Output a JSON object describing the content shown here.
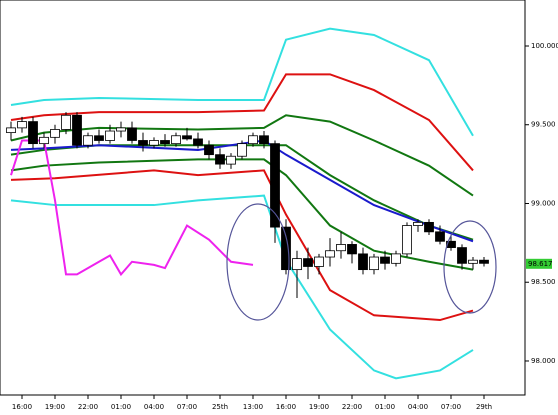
{
  "chart_data": {
    "type": "candlestick",
    "categories": [
      null,
      "16:00",
      null,
      null,
      "19:00",
      null,
      null,
      "22:00",
      null,
      null,
      "01:00",
      null,
      null,
      "04:00",
      null,
      null,
      "07:00",
      null,
      null,
      "25th",
      null,
      null,
      "13:00",
      null,
      null,
      "16:00",
      null,
      null,
      "19:00",
      null,
      null,
      "22:00",
      null,
      null,
      "01:00",
      null,
      null,
      "04:00",
      null,
      null,
      "07:00",
      null,
      null,
      "29th"
    ],
    "open": [
      99.45,
      99.48,
      99.52,
      99.38,
      99.42,
      99.47,
      99.56,
      99.37,
      99.43,
      99.4,
      99.46,
      99.48,
      99.4,
      99.37,
      99.4,
      99.38,
      99.43,
      99.41,
      99.37,
      99.31,
      99.25,
      99.3,
      99.38,
      99.43,
      99.38,
      98.85,
      98.58,
      98.65,
      98.6,
      98.66,
      98.7,
      98.74,
      98.68,
      98.58,
      98.66,
      98.62,
      98.68,
      98.86,
      98.88,
      98.82,
      98.76,
      98.72,
      98.62,
      98.64
    ],
    "high": [
      99.52,
      99.55,
      99.55,
      99.45,
      99.5,
      99.58,
      99.58,
      99.45,
      99.47,
      99.5,
      99.52,
      99.52,
      99.45,
      99.42,
      99.44,
      99.45,
      99.48,
      99.45,
      99.4,
      99.35,
      99.32,
      99.4,
      99.45,
      99.46,
      99.4,
      98.9,
      98.7,
      98.72,
      98.68,
      98.78,
      98.82,
      98.76,
      98.72,
      98.68,
      98.7,
      98.7,
      98.88,
      98.9,
      98.9,
      98.86,
      98.8,
      98.74,
      98.66,
      98.66
    ],
    "low": [
      99.4,
      99.45,
      99.35,
      99.35,
      99.38,
      99.44,
      99.35,
      99.35,
      99.38,
      99.38,
      99.42,
      99.38,
      99.33,
      99.35,
      99.36,
      99.36,
      99.4,
      99.35,
      99.28,
      99.22,
      99.22,
      99.28,
      99.36,
      99.35,
      98.75,
      98.55,
      98.4,
      98.52,
      98.55,
      98.6,
      98.65,
      98.62,
      98.55,
      98.55,
      98.58,
      98.6,
      98.66,
      98.82,
      98.8,
      98.74,
      98.7,
      98.58,
      98.58,
      98.6
    ],
    "close": [
      99.48,
      99.52,
      99.38,
      99.42,
      99.47,
      99.56,
      99.37,
      99.43,
      99.4,
      99.46,
      99.48,
      99.4,
      99.37,
      99.4,
      99.38,
      99.43,
      99.41,
      99.37,
      99.31,
      99.25,
      99.3,
      99.38,
      99.43,
      99.38,
      98.85,
      98.58,
      98.65,
      98.6,
      98.66,
      98.7,
      98.74,
      98.68,
      98.58,
      98.66,
      98.62,
      98.68,
      98.86,
      98.88,
      98.82,
      98.76,
      98.72,
      98.62,
      98.64,
      98.62
    ],
    "lines": [
      {
        "color": "#33e0e0",
        "x": [
          0,
          3,
          8,
          17,
          23,
          25,
          29,
          33,
          38,
          42
        ],
        "values": [
          99.625,
          99.657,
          99.67,
          99.657,
          99.657,
          100.04,
          100.11,
          100.07,
          99.91,
          99.43
        ]
      },
      {
        "color": "#33e0e0",
        "x": [
          0,
          4,
          13,
          17,
          23,
          25,
          29,
          33,
          35,
          39,
          42
        ],
        "values": [
          99.02,
          98.99,
          98.99,
          99.02,
          99.05,
          98.64,
          98.2,
          97.94,
          97.89,
          97.94,
          98.07
        ]
      },
      {
        "color": "#dd1111",
        "x": [
          0,
          3,
          8,
          17,
          23,
          25,
          29,
          33,
          38,
          42
        ],
        "values": [
          99.53,
          99.56,
          99.58,
          99.58,
          99.59,
          99.82,
          99.82,
          99.72,
          99.53,
          99.21
        ]
      },
      {
        "color": "#dd1111",
        "x": [
          0,
          4,
          13,
          17,
          23,
          25,
          29,
          33,
          39,
          42
        ],
        "values": [
          99.15,
          99.16,
          99.21,
          99.18,
          99.21,
          98.93,
          98.45,
          98.29,
          98.26,
          98.32
        ]
      },
      {
        "color": "#117711",
        "x": [
          0,
          3,
          8,
          17,
          23,
          25,
          29,
          33,
          38,
          42
        ],
        "values": [
          99.4,
          99.45,
          99.48,
          99.47,
          99.48,
          99.56,
          99.52,
          99.4,
          99.24,
          99.05
        ]
      },
      {
        "color": "#117711",
        "x": [
          0,
          3,
          8,
          17,
          23,
          25,
          29,
          33,
          38,
          42
        ],
        "values": [
          99.21,
          99.24,
          99.26,
          99.28,
          99.28,
          99.18,
          98.86,
          98.7,
          98.63,
          98.58
        ]
      },
      {
        "color": "#117711",
        "x": [
          0,
          3,
          8,
          17,
          23,
          25,
          29,
          33,
          38,
          42
        ],
        "values": [
          99.31,
          99.34,
          99.37,
          99.37,
          99.37,
          99.37,
          99.18,
          99.02,
          98.86,
          98.77
        ]
      },
      {
        "color": "#1a1acc",
        "x": [
          0,
          3,
          8,
          17,
          23,
          25,
          29,
          33,
          38,
          42
        ],
        "values": [
          99.34,
          99.35,
          99.37,
          99.34,
          99.4,
          99.31,
          99.15,
          98.99,
          98.86,
          98.76
        ]
      },
      {
        "color": "#ee22ee",
        "x": [
          0,
          1,
          3,
          4,
          5,
          6,
          8,
          9,
          10,
          11,
          13,
          14,
          16,
          18,
          20,
          22
        ],
        "values": [
          99.18,
          99.4,
          99.4,
          99.02,
          98.55,
          98.55,
          98.63,
          98.67,
          98.55,
          98.63,
          98.61,
          98.59,
          98.86,
          98.77,
          98.63,
          98.61
        ]
      }
    ],
    "ylim": [
      97.784,
      100.292
    ],
    "yticks": [
      {
        "value": 98,
        "label": "98.000"
      },
      {
        "value": 98.5,
        "label": "98.500"
      },
      {
        "value": 99,
        "label": "99.000"
      },
      {
        "value": 99.5,
        "label": "99.500"
      },
      {
        "value": 100,
        "label": "100.000"
      }
    ],
    "last_price": {
      "value": 98.617,
      "label": "98.617"
    },
    "last_price_color": "#33cc33"
  }
}
